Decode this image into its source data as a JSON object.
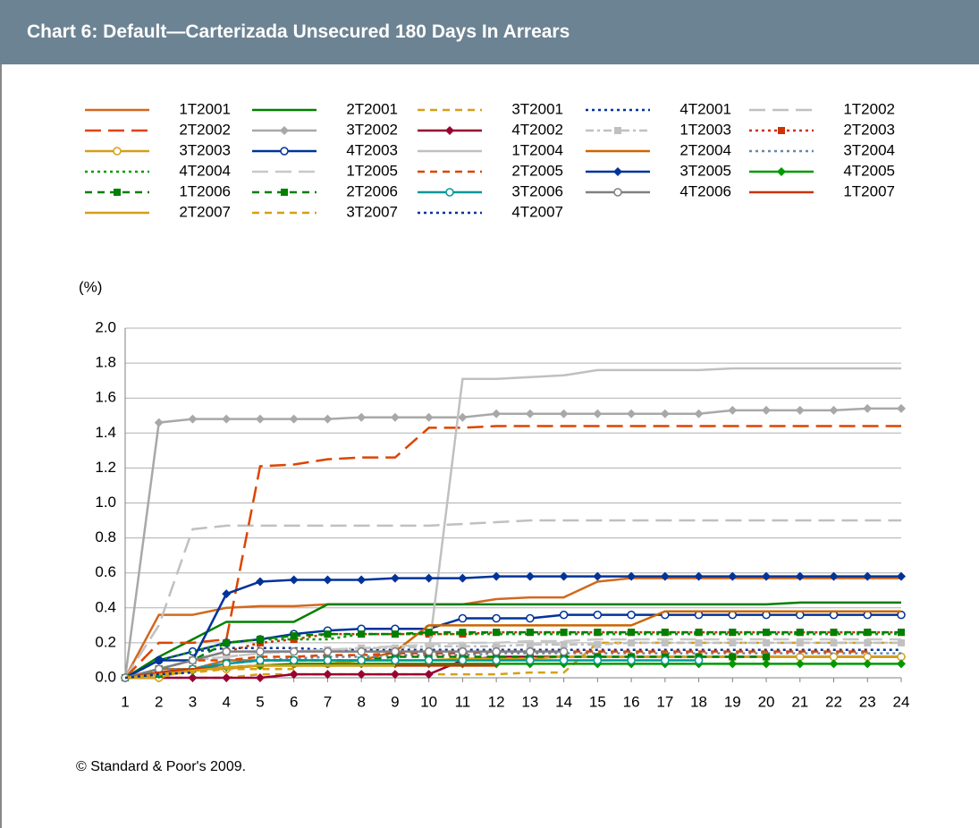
{
  "chart_data": {
    "type": "line",
    "title": "Chart 6: Default—Carterizada Unsecured 180 Days In Arrears",
    "y_label": "(%)",
    "source": "© Standard & Poor's 2009.",
    "x": [
      1,
      2,
      3,
      4,
      5,
      6,
      7,
      8,
      9,
      10,
      11,
      12,
      13,
      14,
      15,
      16,
      17,
      18,
      19,
      20,
      21,
      22,
      23,
      24
    ],
    "xlim": [
      1,
      24
    ],
    "xticks": [
      1,
      2,
      3,
      4,
      5,
      6,
      7,
      8,
      9,
      10,
      11,
      12,
      13,
      14,
      15,
      16,
      17,
      18,
      19,
      20,
      21,
      22,
      23,
      24
    ],
    "ylim": [
      0,
      2
    ],
    "yticks": [
      {
        "value": 0,
        "label": "0.0"
      },
      0.2,
      0.4,
      0.6,
      0.8,
      {
        "value": 1,
        "label": "1.0"
      },
      1.2,
      1.4,
      1.6,
      1.8,
      {
        "value": 2,
        "label": "2.0"
      }
    ],
    "grid": true,
    "series": [
      {
        "name": "1T2001",
        "color": "#d2691e",
        "dash": "solid",
        "marker": null,
        "values": [
          0,
          0.36,
          0.36,
          0.4,
          0.41,
          0.41,
          0.42,
          0.42,
          0.42,
          0.42,
          0.42,
          0.45,
          0.46,
          0.46,
          0.55,
          0.57,
          0.57,
          0.57,
          0.57,
          0.57,
          0.57,
          0.57,
          0.57,
          0.57
        ]
      },
      {
        "name": "2T2001",
        "color": "#008000",
        "dash": "solid",
        "marker": null,
        "values": [
          0,
          0.12,
          0.22,
          0.32,
          0.32,
          0.32,
          0.42,
          0.42,
          0.42,
          0.42,
          0.42,
          0.42,
          0.42,
          0.42,
          0.42,
          0.42,
          0.42,
          0.42,
          0.42,
          0.42,
          0.43,
          0.43,
          0.43,
          0.43
        ]
      },
      {
        "name": "3T2001",
        "color": "#d4a017",
        "dash": "dash",
        "marker": null,
        "values": [
          0,
          0,
          0,
          0,
          0.02,
          0.02,
          0.02,
          0.02,
          0.02,
          0.02,
          0.02,
          0.02,
          0.03,
          0.03,
          0.2,
          0.2,
          0.2,
          0.2,
          0.2,
          0.2,
          0.2,
          0.2,
          0.2,
          0.2
        ]
      },
      {
        "name": "4T2001",
        "color": "#003399",
        "dash": "dot",
        "marker": null,
        "values": [
          0,
          0.1,
          0.15,
          0.17,
          0.17,
          0.17,
          0.16,
          0.16,
          0.16,
          0.16,
          0.16,
          0.16,
          0.16,
          0.16,
          0.16,
          0.16,
          0.16,
          0.16,
          0.16,
          0.16,
          0.16,
          0.16,
          0.16,
          0.16
        ]
      },
      {
        "name": "1T2002",
        "color": "#c0c0c0",
        "dash": "longdash",
        "marker": null,
        "values": [
          0,
          0.3,
          0.85,
          0.87,
          0.87,
          0.87,
          0.87,
          0.87,
          0.87,
          0.87,
          0.88,
          0.89,
          0.9,
          0.9,
          0.9,
          0.9,
          0.9,
          0.9,
          0.9,
          0.9,
          0.9,
          0.9,
          0.9,
          0.9
        ]
      },
      {
        "name": "2T2002",
        "color": "#dd4400",
        "dash": "longdash",
        "marker": null,
        "values": [
          0,
          0.2,
          0.2,
          0.22,
          1.21,
          1.22,
          1.25,
          1.26,
          1.26,
          1.43,
          1.43,
          1.44,
          1.44,
          1.44,
          1.44,
          1.44,
          1.44,
          1.44,
          1.44,
          1.44,
          1.44,
          1.44,
          1.44,
          1.44
        ]
      },
      {
        "name": "3T2002",
        "color": "#a8a8a8",
        "dash": "solid",
        "marker": "diamond",
        "values": [
          0,
          1.46,
          1.48,
          1.48,
          1.48,
          1.48,
          1.48,
          1.49,
          1.49,
          1.49,
          1.49,
          1.51,
          1.51,
          1.51,
          1.51,
          1.51,
          1.51,
          1.51,
          1.53,
          1.53,
          1.53,
          1.53,
          1.54,
          1.54
        ]
      },
      {
        "name": "4T2002",
        "color": "#990033",
        "dash": "solid",
        "marker": "diamond",
        "values": [
          0,
          0,
          0,
          0,
          0,
          0.02,
          0.02,
          0.02,
          0.02,
          0.02,
          0.1,
          0.12,
          0.12,
          0.12,
          0.12,
          0.12,
          0.12,
          0.12,
          0.12,
          0.12,
          0.12,
          0.12,
          0.12,
          0.12
        ]
      },
      {
        "name": "1T2003",
        "color": "#c0c0c0",
        "dash": "dashdot",
        "marker": "square",
        "values": [
          0,
          0.05,
          0.1,
          0.12,
          0.14,
          0.15,
          0.16,
          0.17,
          0.17,
          0.18,
          0.18,
          0.18,
          0.19,
          0.19,
          0.19,
          0.2,
          0.2,
          0.2,
          0.2,
          0.2,
          0.2,
          0.2,
          0.2,
          0.2
        ]
      },
      {
        "name": "2T2003",
        "color": "#cc3300",
        "dash": "dot",
        "marker": "square",
        "values": [
          0,
          0.05,
          0.1,
          0.15,
          0.2,
          0.22,
          0.25,
          0.25,
          0.25,
          0.25,
          0.25,
          0.26,
          0.26,
          0.26,
          0.26,
          0.26,
          0.26,
          0.26,
          0.26,
          0.26,
          0.26,
          0.26,
          0.26,
          0.26
        ]
      },
      {
        "name": "3T2003",
        "color": "#d4a017",
        "dash": "solid",
        "marker": "circle-open",
        "values": [
          0,
          0,
          0.05,
          0.05,
          0.07,
          0.08,
          0.08,
          0.1,
          0.1,
          0.1,
          0.11,
          0.11,
          0.11,
          0.12,
          0.12,
          0.12,
          0.12,
          0.12,
          0.12,
          0.12,
          0.12,
          0.12,
          0.12,
          0.12
        ]
      },
      {
        "name": "4T2003",
        "color": "#003399",
        "dash": "solid",
        "marker": "circle-open",
        "values": [
          0,
          0.1,
          0.15,
          0.2,
          0.22,
          0.25,
          0.27,
          0.28,
          0.28,
          0.28,
          0.34,
          0.34,
          0.34,
          0.36,
          0.36,
          0.36,
          0.36,
          0.36,
          0.36,
          0.36,
          0.36,
          0.36,
          0.36,
          0.36
        ]
      },
      {
        "name": "1T2004",
        "color": "#c0c0c0",
        "dash": "solid",
        "marker": null,
        "values": [
          0,
          0.05,
          0.1,
          0.15,
          0.15,
          0.15,
          0.15,
          0.15,
          0.15,
          0.15,
          1.71,
          1.71,
          1.72,
          1.73,
          1.76,
          1.76,
          1.76,
          1.76,
          1.77,
          1.77,
          1.77,
          1.77,
          1.77,
          1.77
        ]
      },
      {
        "name": "2T2004",
        "color": "#cc6600",
        "dash": "solid",
        "marker": null,
        "values": [
          0,
          0.05,
          0.05,
          0.1,
          0.1,
          0.1,
          0.1,
          0.1,
          0.15,
          0.3,
          0.3,
          0.3,
          0.3,
          0.3,
          0.3,
          0.3,
          0.38,
          0.38,
          0.38,
          0.38,
          0.38,
          0.38,
          0.38,
          0.38
        ]
      },
      {
        "name": "3T2004",
        "color": "#6688aa",
        "dash": "dot",
        "marker": null,
        "values": [
          0,
          0.05,
          0.05,
          0.1,
          0.1,
          0.11,
          0.12,
          0.12,
          0.13,
          0.13,
          0.13,
          0.14,
          0.14,
          0.14,
          0.14,
          0.14,
          0.14,
          0.14,
          0.14,
          0.14,
          0.14,
          0.14,
          0.14,
          0.14
        ]
      },
      {
        "name": "4T2004",
        "color": "#009900",
        "dash": "dot",
        "marker": null,
        "values": [
          0,
          0.1,
          0.15,
          0.2,
          0.22,
          0.22,
          0.22,
          0.25,
          0.25,
          0.25,
          0.25,
          0.25,
          0.25,
          0.25,
          0.25,
          0.25,
          0.25,
          0.25,
          0.25,
          0.25,
          0.25,
          0.25,
          0.25,
          0.25
        ]
      },
      {
        "name": "1T2005",
        "color": "#c8c8c8",
        "dash": "longdash",
        "marker": null,
        "values": [
          0,
          0.05,
          0.1,
          0.12,
          0.14,
          0.15,
          0.16,
          0.17,
          0.18,
          0.19,
          0.2,
          0.2,
          0.21,
          0.21,
          0.22,
          0.22,
          0.22,
          0.22,
          0.22,
          0.22,
          0.22,
          0.22,
          0.22,
          0.22
        ]
      },
      {
        "name": "2T2005",
        "color": "#dd4400",
        "dash": "dash",
        "marker": null,
        "values": [
          0,
          0.05,
          0.1,
          0.1,
          0.12,
          0.12,
          0.13,
          0.13,
          0.14,
          0.14,
          0.14,
          0.15,
          0.15,
          0.15,
          0.15,
          0.15,
          0.15,
          0.15,
          0.15,
          0.15,
          0.15,
          0.15,
          0.15,
          null
        ]
      },
      {
        "name": "3T2005",
        "color": "#003399",
        "dash": "solid",
        "marker": "diamond",
        "values": [
          0,
          0.1,
          0.1,
          0.48,
          0.55,
          0.56,
          0.56,
          0.56,
          0.57,
          0.57,
          0.57,
          0.58,
          0.58,
          0.58,
          0.58,
          0.58,
          0.58,
          0.58,
          0.58,
          0.58,
          0.58,
          0.58,
          0.58,
          0.58
        ]
      },
      {
        "name": "4T2005",
        "color": "#009900",
        "dash": "solid",
        "marker": "diamond",
        "values": [
          0,
          0.02,
          0.04,
          0.06,
          0.07,
          0.08,
          0.08,
          0.08,
          0.08,
          0.08,
          0.08,
          0.08,
          0.08,
          0.08,
          0.08,
          0.08,
          0.08,
          0.08,
          0.08,
          0.08,
          0.08,
          0.08,
          0.08,
          0.08
        ]
      },
      {
        "name": "1T2006",
        "color": "#008000",
        "dash": "dash",
        "marker": "square",
        "values": [
          0,
          0.02,
          0.05,
          0.08,
          0.1,
          0.1,
          0.1,
          0.1,
          0.12,
          0.12,
          0.12,
          0.12,
          0.12,
          0.12,
          0.12,
          0.12,
          0.12,
          0.12,
          0.12,
          0.12,
          null,
          null,
          null,
          null
        ]
      },
      {
        "name": "2T2006",
        "color": "#008000",
        "dash": "dash",
        "marker": "square",
        "values": [
          0,
          0.05,
          0.1,
          0.2,
          0.22,
          0.24,
          0.25,
          0.25,
          0.25,
          0.26,
          0.26,
          0.26,
          0.26,
          0.26,
          0.26,
          0.26,
          0.26,
          0.26,
          0.26,
          0.26,
          0.26,
          0.26,
          0.26,
          0.26
        ]
      },
      {
        "name": "3T2006",
        "color": "#009999",
        "dash": "solid",
        "marker": "circle-open",
        "values": [
          0,
          0.03,
          0.05,
          0.08,
          0.1,
          0.1,
          0.1,
          0.1,
          0.1,
          0.1,
          0.1,
          0.1,
          0.1,
          0.1,
          0.1,
          0.1,
          0.1,
          0.1,
          null,
          null,
          null,
          null,
          null,
          null
        ]
      },
      {
        "name": "4T2006",
        "color": "#808080",
        "dash": "solid",
        "marker": "circle-open",
        "values": [
          0,
          0.05,
          0.1,
          0.15,
          0.15,
          0.15,
          0.15,
          0.15,
          0.15,
          0.15,
          0.15,
          0.15,
          0.15,
          0.15,
          null,
          null,
          null,
          null,
          null,
          null,
          null,
          null,
          null,
          null
        ]
      },
      {
        "name": "1T2007",
        "color": "#cc3300",
        "dash": "solid",
        "marker": null,
        "values": [
          0,
          0.03,
          0.05,
          0.06,
          0.07,
          0.07,
          0.07,
          0.07,
          0.07,
          0.07,
          0.07,
          0.07,
          null,
          null,
          null,
          null,
          null,
          null,
          null,
          null,
          null,
          null,
          null,
          null
        ]
      },
      {
        "name": "2T2007",
        "color": "#d4a017",
        "dash": "solid",
        "marker": null,
        "values": [
          0,
          0.02,
          0.04,
          0.06,
          0.07,
          0.07,
          0.07,
          0.07,
          0.07,
          null,
          null,
          null,
          null,
          null,
          null,
          null,
          null,
          null,
          null,
          null,
          null,
          null,
          null,
          null
        ]
      },
      {
        "name": "3T2007",
        "color": "#d4a017",
        "dash": "dash",
        "marker": null,
        "values": [
          0,
          0.02,
          0.03,
          0.05,
          0.05,
          0.05,
          null,
          null,
          null,
          null,
          null,
          null,
          null,
          null,
          null,
          null,
          null,
          null,
          null,
          null,
          null,
          null,
          null,
          null
        ]
      },
      {
        "name": "4T2007",
        "color": "#003399",
        "dash": "dot",
        "marker": null,
        "values": [
          0,
          0.02,
          0.03,
          null,
          null,
          null,
          null,
          null,
          null,
          null,
          null,
          null,
          null,
          null,
          null,
          null,
          null,
          null,
          null,
          null,
          null,
          null,
          null,
          null
        ]
      }
    ]
  }
}
